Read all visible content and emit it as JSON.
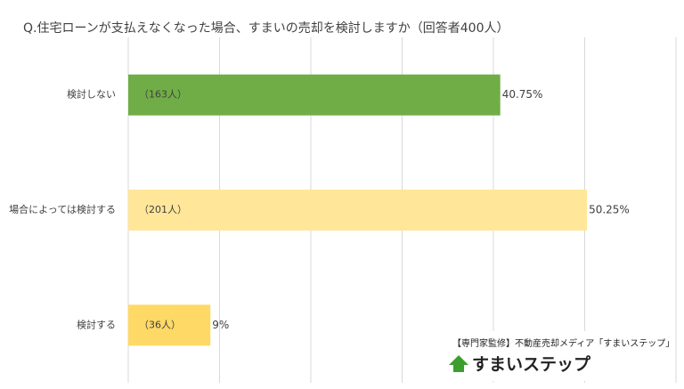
{
  "chart_data": {
    "type": "hbar",
    "title": "Q.住宅ローンが支払えなくなった場合、すまいの売却を検討しますか（回答者400人）",
    "categories": [
      "検討しない",
      "場合によっては検討する",
      "検討する"
    ],
    "values": [
      40.75,
      50.25,
      9
    ],
    "value_labels": [
      "40.75%",
      "50.25%",
      "9%"
    ],
    "count_labels": [
      "（163人）",
      "（201人）",
      "（36人）"
    ],
    "colors": [
      "#70ad47",
      "#ffe699",
      "#ffd966"
    ],
    "xlim": [
      0,
      60
    ],
    "xticks": [
      0,
      10,
      20,
      30,
      40,
      50,
      60
    ],
    "grid": true
  },
  "footer": {
    "credit": "【専門家監修】不動産売却メディア「すまいステップ」",
    "logo": "すまいステップ"
  }
}
